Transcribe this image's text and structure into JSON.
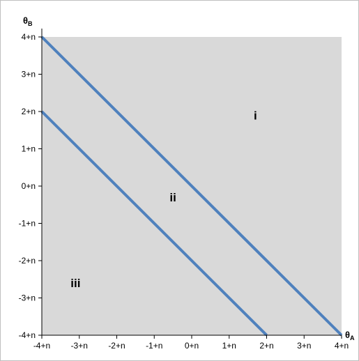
{
  "chart_data": {
    "type": "line",
    "title": "",
    "xlabel": {
      "main": "θ",
      "sub": "A"
    },
    "ylabel": {
      "main": "θ",
      "sub": "B"
    },
    "xlim": [
      -4,
      4
    ],
    "ylim": [
      -4,
      4
    ],
    "x_ticks": [
      {
        "value": -4,
        "label": "-4+n"
      },
      {
        "value": -3,
        "label": "-3+n"
      },
      {
        "value": -2,
        "label": "-2+n"
      },
      {
        "value": -1,
        "label": "-1+n"
      },
      {
        "value": 0,
        "label": "0+n"
      },
      {
        "value": 1,
        "label": "1+n"
      },
      {
        "value": 2,
        "label": "2+n"
      },
      {
        "value": 3,
        "label": "3+n"
      },
      {
        "value": 4,
        "label": "4+n"
      }
    ],
    "y_ticks": [
      {
        "value": 4,
        "label": "4+n"
      },
      {
        "value": 3,
        "label": "3+n"
      },
      {
        "value": 2,
        "label": "2+n"
      },
      {
        "value": 1,
        "label": "1+n"
      },
      {
        "value": 0,
        "label": "0+n"
      },
      {
        "value": -1,
        "label": "-1+n"
      },
      {
        "value": -2,
        "label": "-2+n"
      },
      {
        "value": -3,
        "label": "-3+n"
      },
      {
        "value": -4,
        "label": "-4+n"
      }
    ],
    "series": [
      {
        "points": [
          [
            -4,
            4
          ],
          [
            4,
            -4
          ]
        ]
      },
      {
        "points": [
          [
            -4,
            2
          ],
          [
            2,
            -4
          ]
        ]
      }
    ],
    "annotations": [
      {
        "text": "i",
        "x": 1.7,
        "y": 1.9
      },
      {
        "text": "ii",
        "x": -0.5,
        "y": -0.3
      },
      {
        "text": "iii",
        "x": -3.1,
        "y": -2.6
      }
    ],
    "grid": false,
    "colors": {
      "plot_background": "#d9d9d9",
      "line": "#4f81bd",
      "axis": "#000000"
    }
  }
}
